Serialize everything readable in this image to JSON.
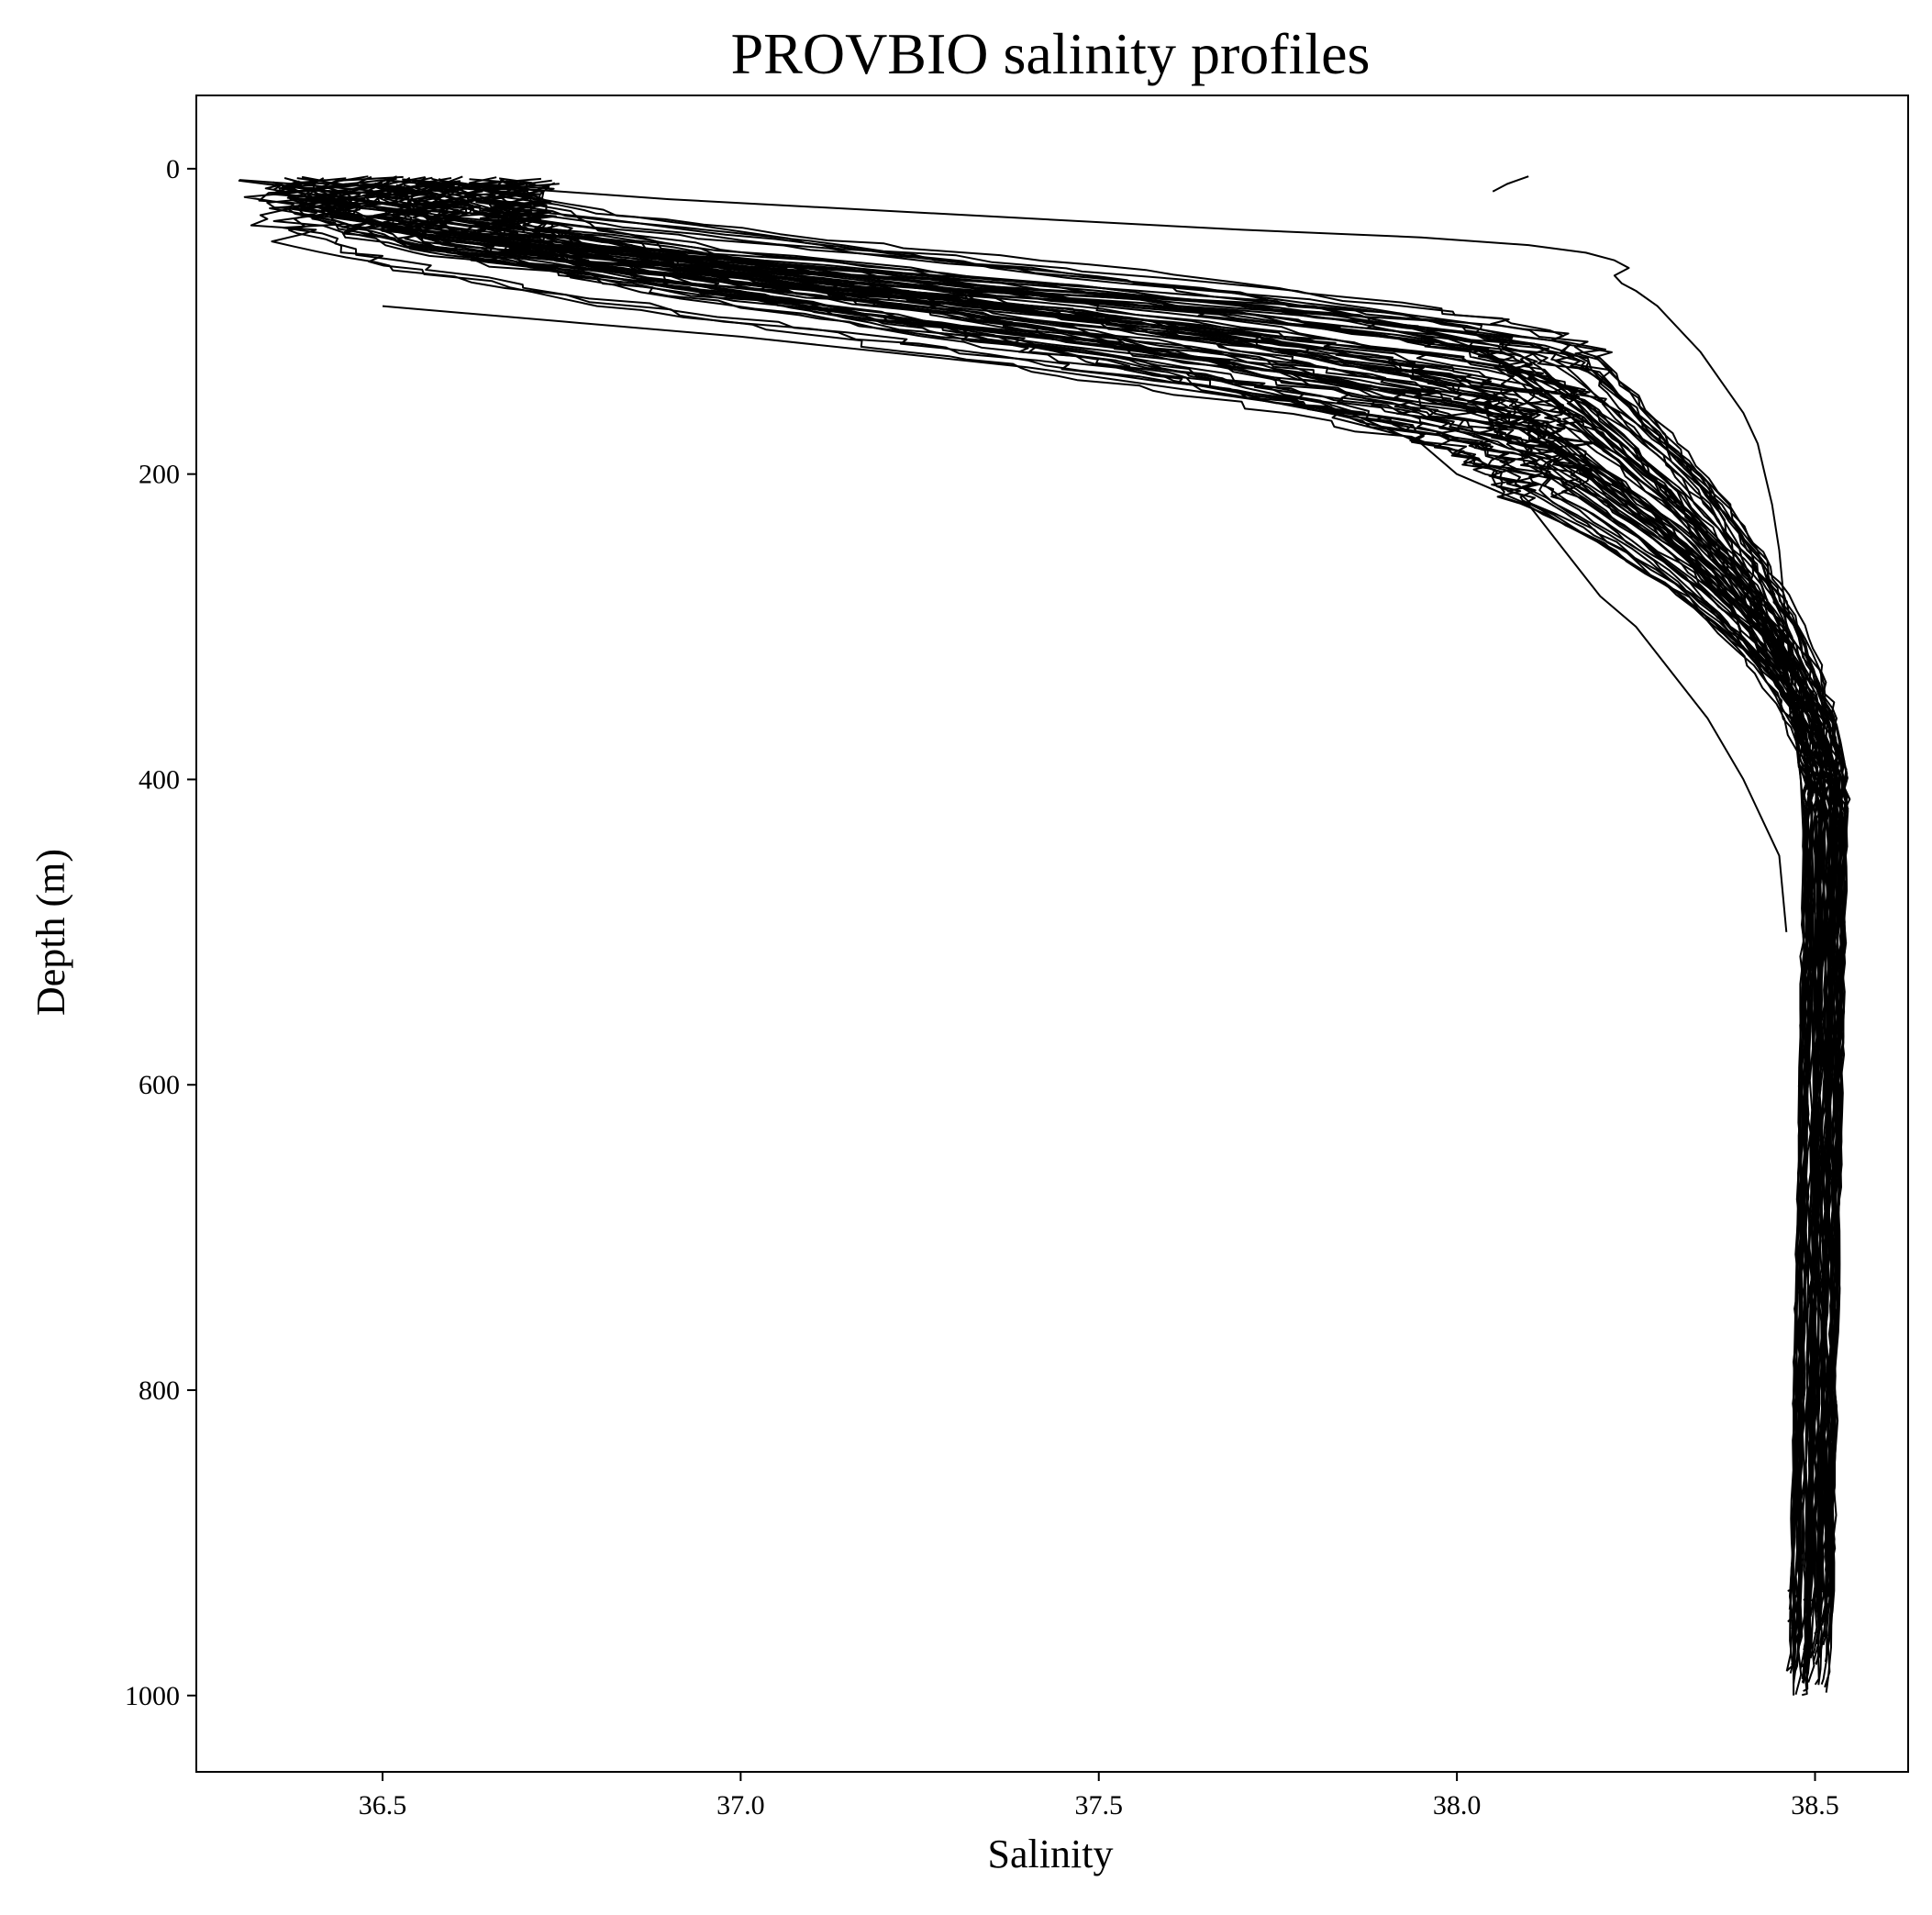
{
  "chart_data": {
    "type": "line",
    "title": "PROVBIO salinity profiles",
    "xlabel": "Salinity",
    "ylabel": "Depth (m)",
    "xlim": [
      36.24,
      38.63
    ],
    "ylim": [
      1050,
      -48
    ],
    "y_inverted": true,
    "x_ticks": [
      "36.5",
      "37.0",
      "37.5",
      "38.0",
      "38.5"
    ],
    "y_ticks": [
      "0",
      "200",
      "400",
      "600",
      "800",
      "1000"
    ],
    "grid": false,
    "legend": "none",
    "line_color": "#000000",
    "series_note": "~70 profiles drawn in black; representative traces listed",
    "series": [
      {
        "depth": [
          5,
          10,
          15,
          20,
          25,
          30,
          35,
          40
        ],
        "salinity": [
          36.52,
          36.49,
          36.44,
          36.4,
          36.38,
          36.39,
          36.42,
          36.46
        ]
      },
      {
        "depth": [
          5,
          8,
          14,
          18,
          22,
          28
        ],
        "salinity": [
          36.48,
          36.44,
          36.4,
          36.39,
          36.41,
          36.45
        ]
      },
      {
        "depth": [
          40,
          50,
          60,
          70,
          80,
          85,
          90,
          100,
          110,
          120,
          140,
          160,
          180,
          200,
          220,
          250,
          280,
          300,
          330,
          360,
          400,
          450,
          500,
          600,
          700,
          800,
          900,
          1000
        ],
        "salinity": [
          36.45,
          36.55,
          36.75,
          37.0,
          37.3,
          37.6,
          37.8,
          37.9,
          37.98,
          38.04,
          38.12,
          38.2,
          38.27,
          38.32,
          38.37,
          38.41,
          38.43,
          38.45,
          38.46,
          38.47,
          38.48,
          38.49,
          38.49,
          38.48,
          38.48,
          38.48,
          38.47,
          38.47
        ]
      },
      {
        "depth": [
          30,
          40,
          50,
          60,
          70,
          80,
          90,
          100,
          110,
          120,
          130,
          140,
          150,
          160,
          180,
          200,
          220,
          250,
          280,
          300,
          330,
          360,
          400,
          450,
          500,
          600,
          700,
          800,
          900,
          990
        ],
        "salinity": [
          36.4,
          36.55,
          36.75,
          37.0,
          37.25,
          37.5,
          37.7,
          37.85,
          37.95,
          38.02,
          38.08,
          38.14,
          38.19,
          38.23,
          38.29,
          38.34,
          38.38,
          38.42,
          38.44,
          38.46,
          38.47,
          38.48,
          38.49,
          38.5,
          38.5,
          38.49,
          38.48,
          38.48,
          38.48,
          38.47
        ]
      },
      {
        "depth": [
          10,
          20,
          30,
          40,
          45,
          50,
          55,
          60,
          65,
          70,
          75,
          80,
          90,
          100,
          110,
          120,
          140,
          160,
          180,
          200,
          220,
          250,
          300,
          350,
          400,
          500,
          600,
          800,
          980
        ],
        "salinity": [
          36.6,
          36.9,
          37.3,
          37.7,
          37.95,
          38.1,
          38.18,
          38.22,
          38.24,
          38.22,
          38.23,
          38.25,
          38.28,
          38.3,
          38.32,
          38.34,
          38.37,
          38.4,
          38.42,
          38.43,
          38.44,
          38.45,
          38.46,
          38.47,
          38.48,
          38.49,
          38.48,
          38.47,
          38.47
        ]
      },
      {
        "depth": [
          90,
          100,
          110,
          120,
          130,
          140,
          150,
          160,
          180,
          200,
          220,
          250,
          280,
          300,
          330,
          360,
          400,
          450,
          500
        ],
        "salinity": [
          36.5,
          36.75,
          37.0,
          37.2,
          37.4,
          37.55,
          37.7,
          37.85,
          37.95,
          38.0,
          38.1,
          38.15,
          38.2,
          38.25,
          38.3,
          38.35,
          38.4,
          38.45,
          38.46
        ]
      },
      {
        "depth": [
          5,
          10,
          15
        ],
        "salinity": [
          38.1,
          38.07,
          38.05
        ]
      }
    ]
  }
}
